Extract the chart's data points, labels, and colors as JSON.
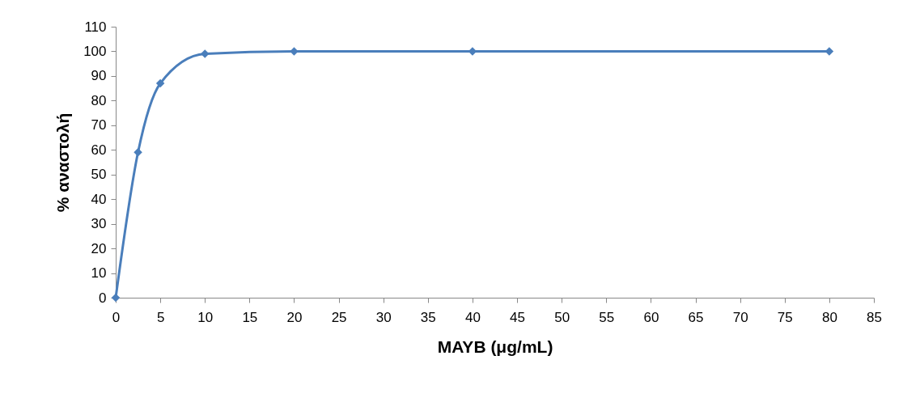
{
  "chart_data": {
    "type": "line",
    "xlabel": "MAYB (μg/mL)",
    "ylabel": "% αναστολή",
    "x": [
      0,
      2.5,
      5,
      10,
      20,
      40,
      80
    ],
    "series": [
      {
        "color": "#4a7ebb",
        "values": [
          0,
          59,
          87,
          99,
          100,
          100,
          100
        ]
      }
    ],
    "xlim": [
      0,
      85
    ],
    "xticks": [
      0,
      5,
      10,
      15,
      20,
      25,
      30,
      35,
      40,
      45,
      50,
      55,
      60,
      65,
      70,
      75,
      80,
      85
    ],
    "ylim": [
      0,
      110
    ],
    "yticks": [
      0,
      10,
      20,
      30,
      40,
      50,
      60,
      70,
      80,
      90,
      100,
      110
    ],
    "grid": false,
    "legend": false,
    "marker": "diamond"
  }
}
